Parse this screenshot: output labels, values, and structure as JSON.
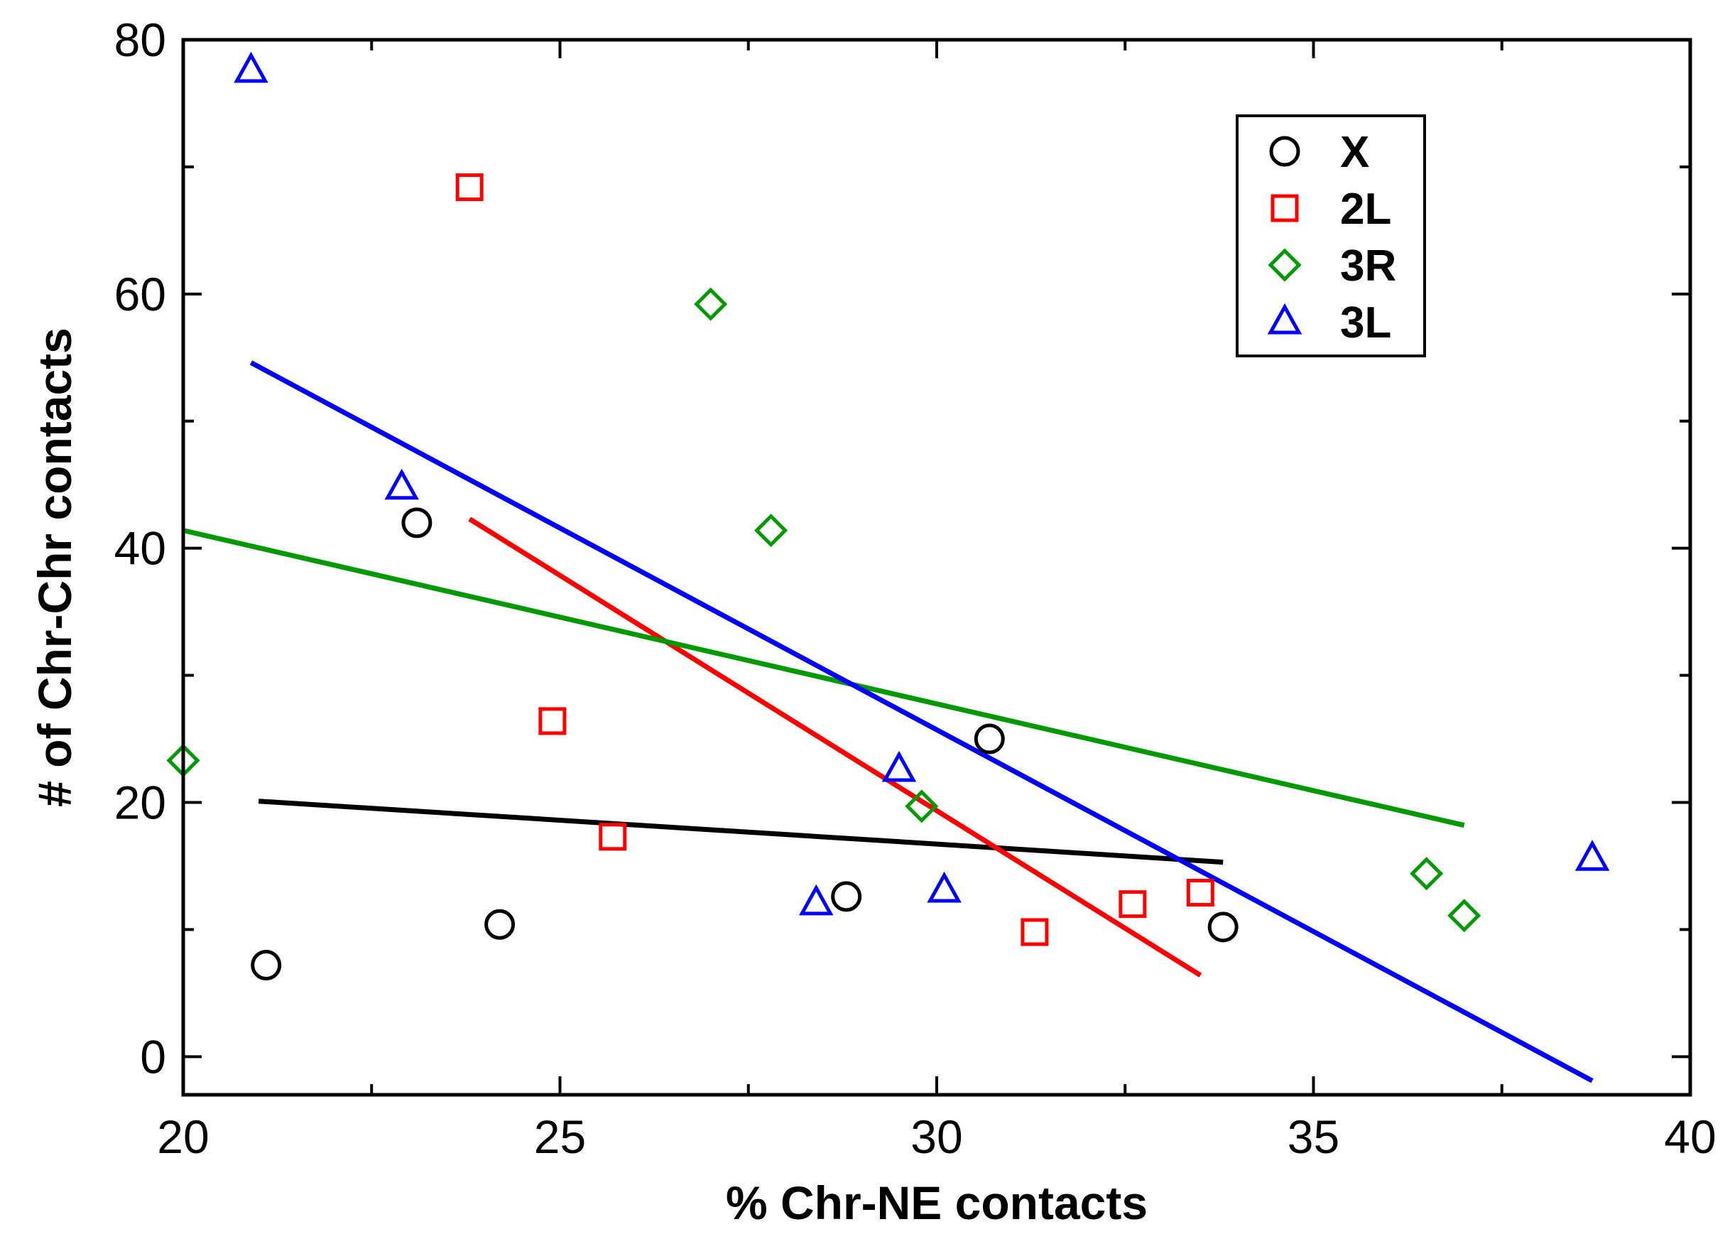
{
  "chart_data": {
    "type": "scatter",
    "title": "",
    "xlabel": "% Chr-NE contacts",
    "ylabel": "# of Chr-Chr contacts",
    "xlim": [
      20,
      40
    ],
    "ylim": [
      -3,
      80
    ],
    "x_ticks": [
      20,
      25,
      30,
      35,
      40
    ],
    "y_ticks": [
      0,
      20,
      40,
      60,
      80
    ],
    "x_tick_labels": [
      "20",
      "25",
      "30",
      "35",
      "40"
    ],
    "y_tick_labels": [
      "0",
      "20",
      "40",
      "60",
      "80"
    ],
    "grid": false,
    "legend_position": "top-right",
    "series": [
      {
        "name": "X",
        "marker": "circle",
        "color": "#000000",
        "points": [
          [
            21.1,
            7.2
          ],
          [
            23.1,
            42.0
          ],
          [
            24.2,
            10.4
          ],
          [
            28.8,
            12.6
          ],
          [
            30.7,
            25.0
          ],
          [
            33.8,
            10.2
          ]
        ],
        "fit": [
          [
            21.0,
            20.1
          ],
          [
            33.8,
            15.3
          ]
        ]
      },
      {
        "name": "2L",
        "marker": "square",
        "color": "#ff0000",
        "points": [
          [
            23.8,
            68.4
          ],
          [
            24.9,
            26.4
          ],
          [
            25.7,
            17.3
          ],
          [
            31.3,
            9.8
          ],
          [
            32.6,
            12.0
          ],
          [
            33.5,
            12.9
          ]
        ],
        "fit": [
          [
            23.8,
            42.3
          ],
          [
            33.5,
            6.4
          ]
        ]
      },
      {
        "name": "3R",
        "marker": "diamond",
        "color": "#009900",
        "points": [
          [
            20.0,
            23.3
          ],
          [
            27.0,
            59.2
          ],
          [
            27.8,
            41.4
          ],
          [
            29.8,
            19.7
          ],
          [
            36.5,
            14.4
          ],
          [
            37.0,
            11.1
          ]
        ],
        "fit": [
          [
            20.0,
            41.4
          ],
          [
            37.0,
            18.2
          ]
        ]
      },
      {
        "name": "3L",
        "marker": "triangle",
        "color": "#0000ff",
        "points": [
          [
            20.9,
            77.6
          ],
          [
            22.9,
            44.8
          ],
          [
            28.4,
            12.1
          ],
          [
            29.5,
            22.6
          ],
          [
            30.1,
            13.1
          ],
          [
            38.7,
            15.6
          ]
        ],
        "fit": [
          [
            20.9,
            54.6
          ],
          [
            38.7,
            -1.9
          ]
        ]
      }
    ]
  }
}
